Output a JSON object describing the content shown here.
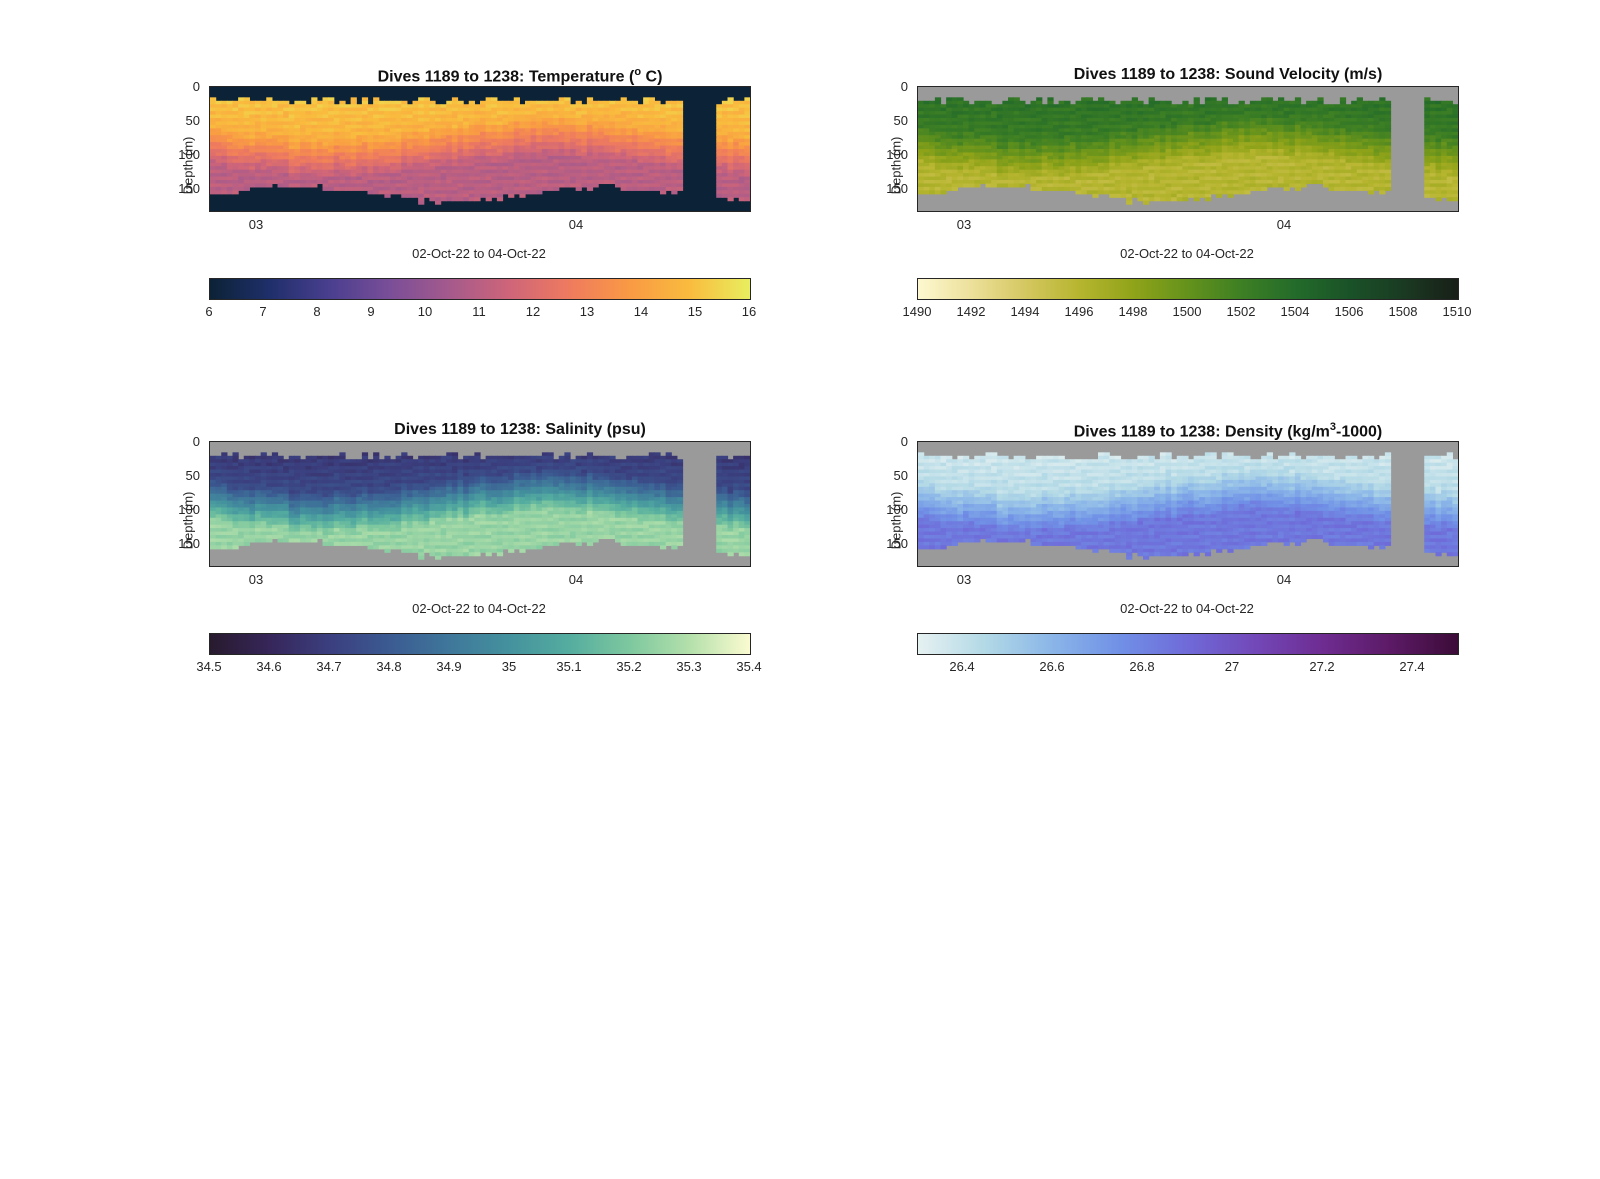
{
  "colors": {
    "background_nodata": "#9a9a9a",
    "axis": "#262626"
  },
  "chart_data": [
    {
      "type": "heatmap",
      "title_main": "Dives 1189 to 1238: Temperature (",
      "title_sup": "o",
      "title_end": " C)",
      "xlabel": "02-Oct-22 to 04-Oct-22",
      "ylabel": "Depth (m)",
      "x_ticks": [
        "03",
        "04"
      ],
      "y_ticks": [
        "0",
        "50",
        "100",
        "150"
      ],
      "ylim": [
        0,
        180
      ],
      "colorbar_ticks": [
        "6",
        "7",
        "8",
        "9",
        "10",
        "11",
        "12",
        "13",
        "14",
        "15",
        "16"
      ],
      "clim": [
        6,
        16
      ],
      "colormap": [
        "#0c2236",
        "#1f2f6b",
        "#4a3f8f",
        "#7a4e98",
        "#a55a8c",
        "#cf6579",
        "#ef7b5e",
        "#f99a44",
        "#f9bc3e",
        "#e8ee5f"
      ],
      "nodata_color": "#0c2236",
      "surface_value": 15.2,
      "bottom_value": 11.0,
      "gap": true
    },
    {
      "type": "heatmap",
      "title_main": "Dives 1189 to 1238: Sound Velocity (m/s)",
      "title_sup": "",
      "title_end": "",
      "xlabel": "02-Oct-22 to 04-Oct-22",
      "ylabel": "Depth (m)",
      "x_ticks": [
        "03",
        "04"
      ],
      "y_ticks": [
        "0",
        "50",
        "100",
        "150"
      ],
      "ylim": [
        0,
        180
      ],
      "colorbar_ticks": [
        "1490",
        "1492",
        "1494",
        "1496",
        "1498",
        "1500",
        "1502",
        "1504",
        "1506",
        "1508",
        "1510"
      ],
      "clim": [
        1490,
        1510
      ],
      "colormap": [
        "#fdf8d0",
        "#ece09a",
        "#d4c760",
        "#b6b52f",
        "#8fa319",
        "#64921c",
        "#3d7f24",
        "#236b2a",
        "#1a5228",
        "#1a3a22",
        "#181f18"
      ],
      "nodata_color": "#9a9a9a",
      "surface_value": 1503.5,
      "bottom_value": 1496.0,
      "gap": true
    },
    {
      "type": "heatmap",
      "title_main": "Dives 1189 to 1238: Salinity (psu)",
      "title_sup": "",
      "title_end": "",
      "xlabel": "02-Oct-22 to 04-Oct-22",
      "ylabel": "Depth (m)",
      "x_ticks": [
        "03",
        "04"
      ],
      "y_ticks": [
        "0",
        "50",
        "100",
        "150"
      ],
      "ylim": [
        0,
        180
      ],
      "colorbar_ticks": [
        "34.5",
        "34.6",
        "34.7",
        "34.8",
        "34.9",
        "35",
        "35.1",
        "35.2",
        "35.3",
        "35.4"
      ],
      "clim": [
        34.5,
        35.4
      ],
      "colormap": [
        "#281a2e",
        "#36265a",
        "#3b3f7f",
        "#3b5b92",
        "#3f779a",
        "#44929e",
        "#55ad9f",
        "#7ec89f",
        "#b4e0ab",
        "#fbfbd0"
      ],
      "nodata_color": "#9a9a9a",
      "surface_value": 34.65,
      "bottom_value": 35.25,
      "gap": true
    },
    {
      "type": "heatmap",
      "title_main": "Dives 1189 to 1238: Density (kg/m",
      "title_sup": "3",
      "title_end": "-1000)",
      "xlabel": "02-Oct-22 to 04-Oct-22",
      "ylabel": "Depth (m)",
      "x_ticks": [
        "03",
        "04"
      ],
      "y_ticks": [
        "0",
        "50",
        "100",
        "150"
      ],
      "ylim": [
        0,
        180
      ],
      "colorbar_ticks": [
        "26.4",
        "26.6",
        "26.8",
        "27",
        "27.2",
        "27.4"
      ],
      "clim": [
        26.3,
        27.5
      ],
      "colormap": [
        "#e6f1f1",
        "#b2d9e6",
        "#8ab5e8",
        "#7090e6",
        "#6f6ad8",
        "#7248b8",
        "#6e2c91",
        "#5c1a66",
        "#3c0c38"
      ],
      "nodata_color": "#9a9a9a",
      "surface_value": 26.35,
      "bottom_value": 26.85,
      "gap": true
    }
  ]
}
